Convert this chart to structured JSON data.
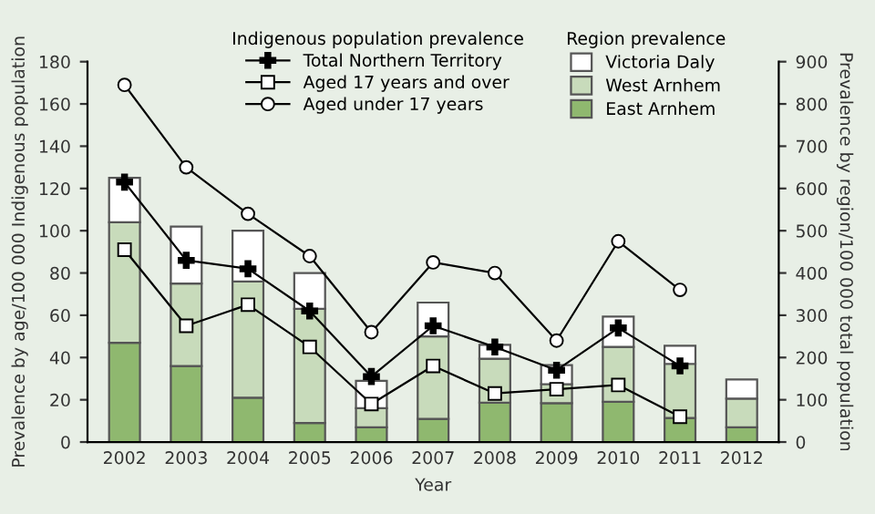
{
  "chart_data": {
    "type": "bar",
    "stacked": true,
    "xlabel": "Year",
    "ylabel": "Prevalence by age/100 000 Indigenous population",
    "y2label": "Prevalence by region/100 000 total population",
    "categories": [
      "2002",
      "2003",
      "2004",
      "2005",
      "2006",
      "2007",
      "2008",
      "2009",
      "2010",
      "2011",
      "2012"
    ],
    "ylim": [
      0,
      180
    ],
    "yticks": [
      0,
      20,
      40,
      60,
      80,
      100,
      120,
      140,
      160,
      180
    ],
    "y2lim": [
      0,
      900
    ],
    "y2ticks": [
      0,
      100,
      200,
      300,
      400,
      500,
      600,
      700,
      800,
      900
    ],
    "grid": false,
    "legend": "top",
    "annotations": [
      "Indigenous population prevalence",
      "Region prevalence"
    ],
    "series": [
      {
        "name": "East Arnhem",
        "axis": "y2",
        "color": "#8fb86f",
        "values": [
          235,
          180,
          105,
          45,
          35,
          55,
          93,
          92,
          95,
          57,
          35
        ]
      },
      {
        "name": "West Arnhem",
        "axis": "y2",
        "color": "#c8dbbb",
        "values": [
          285,
          195,
          275,
          270,
          45,
          195,
          104,
          45,
          130,
          128,
          68
        ]
      },
      {
        "name": "Victoria Daly",
        "axis": "y2",
        "color": "#ffffff",
        "values": [
          105,
          135,
          120,
          85,
          65,
          80,
          33,
          45,
          72,
          43,
          45
        ]
      },
      {
        "name": "Total Northern Territory",
        "type": "line",
        "marker": "cross",
        "color": "#000000",
        "values": [
          123,
          86,
          82,
          62,
          31,
          55,
          45,
          34,
          54,
          36,
          null
        ]
      },
      {
        "name": "Aged 17 years and over",
        "type": "line",
        "marker": "square",
        "color": "#000000",
        "values": [
          91,
          55,
          65,
          45,
          18,
          36,
          23,
          25,
          27,
          12,
          null
        ]
      },
      {
        "name": "Aged under 17 years",
        "type": "line",
        "marker": "circle",
        "color": "#000000",
        "values": [
          169,
          130,
          108,
          88,
          52,
          85,
          80,
          48,
          95,
          72,
          null
        ]
      }
    ]
  }
}
